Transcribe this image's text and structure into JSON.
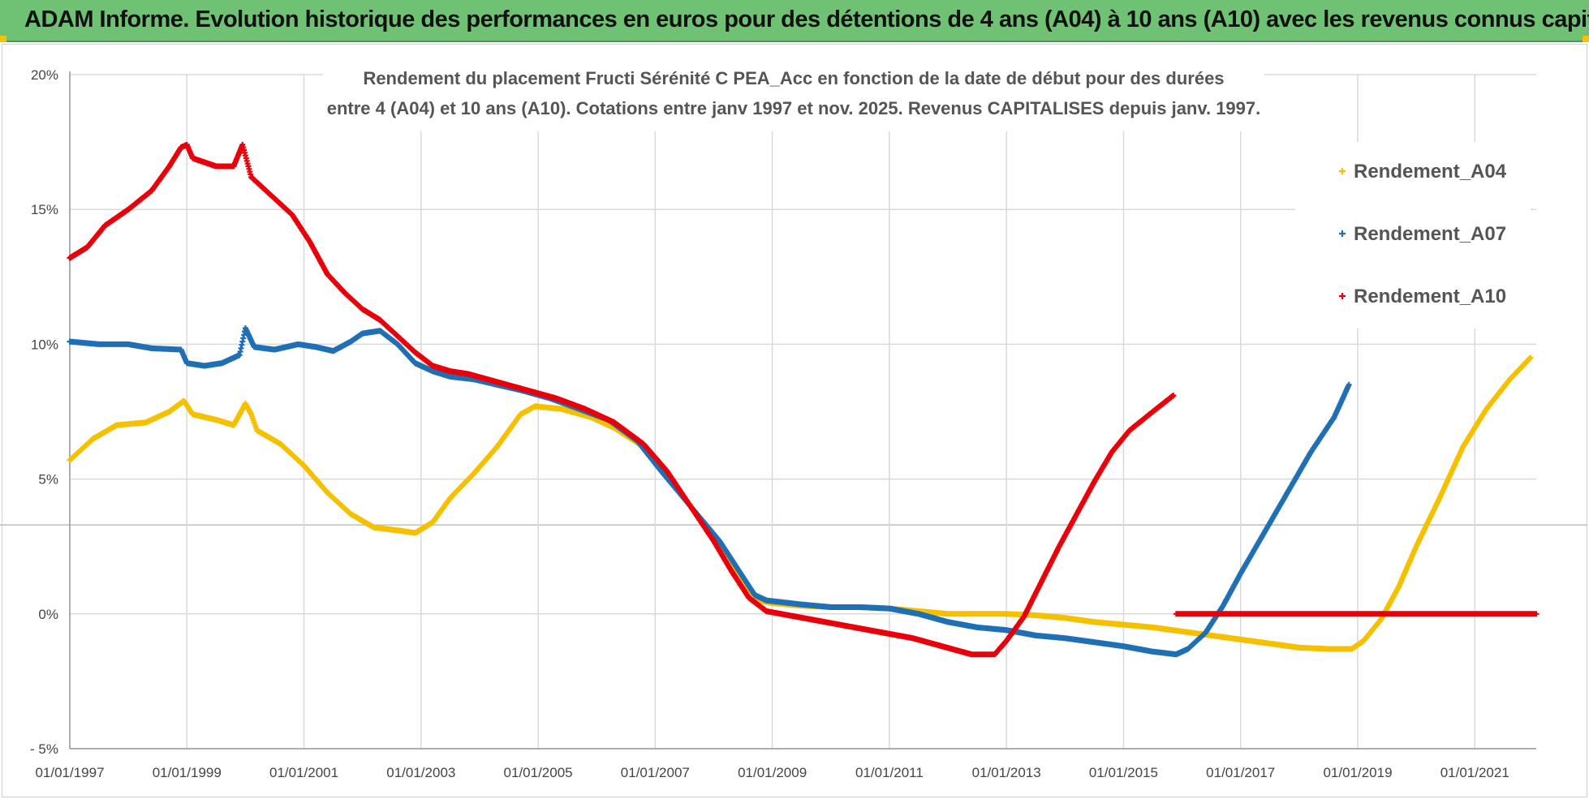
{
  "banner": {
    "text": "ADAM Informe. Evolution historique des performances en euros pour des détentions de 4 ans (A04) à 10 ans (A10) avec les revenus connus capitalisés"
  },
  "colors": {
    "banner_bg": "#6fc273",
    "A04": "#f5c000",
    "A07": "#1f6fb5",
    "A10": "#e8000b"
  },
  "chart_data": {
    "type": "scatter",
    "title_line1": "Rendement du placement Fructi Sérénité C PEA_Acc en fonction de la date de début pour des durées",
    "title_line2": "entre 4 (A04) et 10 ans (A10). Cotations entre janv 1997 et nov. 2025. Revenus CAPITALISES depuis janv. 1997.",
    "xlabel": "",
    "ylabel": "",
    "x_ticks": [
      "01/01/1997",
      "01/01/1999",
      "01/01/2001",
      "01/01/2003",
      "01/01/2005",
      "01/01/2007",
      "01/01/2009",
      "01/01/2011",
      "01/01/2013",
      "01/01/2015",
      "01/01/2017",
      "01/01/2019",
      "01/01/2021"
    ],
    "xlim": [
      1997.0,
      2022.05
    ],
    "y_ticks": [
      "20%",
      "15%",
      "10%",
      "5%",
      "0%",
      "- 5%"
    ],
    "ylim": [
      -5,
      20
    ],
    "grid": true,
    "legend_position": "top-right",
    "series": [
      {
        "name": "Rendement_A04",
        "color_key": "A04",
        "points": [
          [
            1997.0,
            5.7
          ],
          [
            1997.4,
            6.5
          ],
          [
            1997.8,
            7.0
          ],
          [
            1998.3,
            7.1
          ],
          [
            1998.7,
            7.5
          ],
          [
            1998.95,
            7.9
          ],
          [
            1999.1,
            7.4
          ],
          [
            1999.5,
            7.2
          ],
          [
            1999.8,
            7.0
          ],
          [
            2000.0,
            7.8
          ],
          [
            2000.1,
            7.4
          ],
          [
            2000.2,
            6.8
          ],
          [
            2000.6,
            6.3
          ],
          [
            2001.0,
            5.5
          ],
          [
            2001.4,
            4.5
          ],
          [
            2001.8,
            3.7
          ],
          [
            2002.2,
            3.2
          ],
          [
            2002.6,
            3.1
          ],
          [
            2002.9,
            3.0
          ],
          [
            2003.2,
            3.4
          ],
          [
            2003.5,
            4.3
          ],
          [
            2003.9,
            5.2
          ],
          [
            2004.3,
            6.2
          ],
          [
            2004.7,
            7.4
          ],
          [
            2004.95,
            7.7
          ],
          [
            2005.4,
            7.6
          ],
          [
            2005.9,
            7.3
          ],
          [
            2006.3,
            6.9
          ],
          [
            2006.8,
            6.2
          ],
          [
            2007.2,
            5.2
          ],
          [
            2007.6,
            4.0
          ],
          [
            2008.0,
            2.8
          ],
          [
            2008.4,
            1.5
          ],
          [
            2008.75,
            0.5
          ],
          [
            2009.0,
            0.4
          ],
          [
            2009.5,
            0.3
          ],
          [
            2010.0,
            0.25
          ],
          [
            2010.5,
            0.25
          ],
          [
            2011.0,
            0.2
          ],
          [
            2011.5,
            0.1
          ],
          [
            2012.0,
            0.0
          ],
          [
            2012.5,
            0.0
          ],
          [
            2013.0,
            0.0
          ],
          [
            2013.5,
            -0.05
          ],
          [
            2014.0,
            -0.15
          ],
          [
            2014.5,
            -0.3
          ],
          [
            2015.0,
            -0.4
          ],
          [
            2015.5,
            -0.5
          ],
          [
            2016.0,
            -0.65
          ],
          [
            2016.5,
            -0.8
          ],
          [
            2017.0,
            -0.95
          ],
          [
            2017.5,
            -1.1
          ],
          [
            2018.0,
            -1.25
          ],
          [
            2018.5,
            -1.3
          ],
          [
            2018.9,
            -1.3
          ],
          [
            2019.1,
            -1.0
          ],
          [
            2019.4,
            -0.2
          ],
          [
            2019.7,
            1.0
          ],
          [
            2020.0,
            2.5
          ],
          [
            2020.4,
            4.3
          ],
          [
            2020.8,
            6.2
          ],
          [
            2021.2,
            7.6
          ],
          [
            2021.6,
            8.7
          ],
          [
            2021.95,
            9.5
          ]
        ]
      },
      {
        "name": "Rendement_A07",
        "color_key": "A07",
        "points": [
          [
            1997.0,
            10.1
          ],
          [
            1997.5,
            10.0
          ],
          [
            1998.0,
            10.0
          ],
          [
            1998.4,
            9.85
          ],
          [
            1998.9,
            9.8
          ],
          [
            1999.0,
            9.3
          ],
          [
            1999.3,
            9.2
          ],
          [
            1999.6,
            9.3
          ],
          [
            1999.9,
            9.6
          ],
          [
            2000.0,
            10.6
          ],
          [
            2000.15,
            9.9
          ],
          [
            2000.5,
            9.8
          ],
          [
            2000.9,
            10.0
          ],
          [
            2001.2,
            9.9
          ],
          [
            2001.5,
            9.75
          ],
          [
            2001.8,
            10.1
          ],
          [
            2002.0,
            10.4
          ],
          [
            2002.3,
            10.5
          ],
          [
            2002.6,
            10.0
          ],
          [
            2002.9,
            9.3
          ],
          [
            2003.2,
            9.0
          ],
          [
            2003.5,
            8.8
          ],
          [
            2003.9,
            8.7
          ],
          [
            2004.3,
            8.5
          ],
          [
            2004.7,
            8.3
          ],
          [
            2005.2,
            8.0
          ],
          [
            2005.7,
            7.6
          ],
          [
            2006.2,
            7.2
          ],
          [
            2006.7,
            6.4
          ],
          [
            2007.1,
            5.3
          ],
          [
            2007.6,
            4.0
          ],
          [
            2008.1,
            2.7
          ],
          [
            2008.4,
            1.7
          ],
          [
            2008.7,
            0.7
          ],
          [
            2008.9,
            0.5
          ],
          [
            2009.5,
            0.35
          ],
          [
            2010.0,
            0.25
          ],
          [
            2010.5,
            0.25
          ],
          [
            2011.0,
            0.2
          ],
          [
            2011.5,
            0.0
          ],
          [
            2012.0,
            -0.3
          ],
          [
            2012.5,
            -0.5
          ],
          [
            2013.0,
            -0.6
          ],
          [
            2013.5,
            -0.8
          ],
          [
            2014.0,
            -0.9
          ],
          [
            2014.5,
            -1.05
          ],
          [
            2015.0,
            -1.2
          ],
          [
            2015.5,
            -1.4
          ],
          [
            2015.9,
            -1.5
          ],
          [
            2016.1,
            -1.3
          ],
          [
            2016.4,
            -0.7
          ],
          [
            2016.7,
            0.3
          ],
          [
            2017.0,
            1.5
          ],
          [
            2017.4,
            3.0
          ],
          [
            2017.8,
            4.5
          ],
          [
            2018.2,
            6.0
          ],
          [
            2018.6,
            7.3
          ],
          [
            2018.85,
            8.5
          ]
        ]
      },
      {
        "name": "Rendement_A10",
        "color_key": "A10",
        "points": [
          [
            1997.0,
            13.2
          ],
          [
            1997.3,
            13.6
          ],
          [
            1997.6,
            14.4
          ],
          [
            1998.0,
            15.0
          ],
          [
            1998.4,
            15.7
          ],
          [
            1998.7,
            16.6
          ],
          [
            1998.9,
            17.3
          ],
          [
            1999.0,
            17.4
          ],
          [
            1999.1,
            16.9
          ],
          [
            1999.5,
            16.6
          ],
          [
            1999.8,
            16.6
          ],
          [
            1999.95,
            17.4
          ],
          [
            2000.1,
            16.2
          ],
          [
            2000.4,
            15.6
          ],
          [
            2000.8,
            14.8
          ],
          [
            2001.1,
            13.8
          ],
          [
            2001.4,
            12.6
          ],
          [
            2001.7,
            11.9
          ],
          [
            2002.0,
            11.3
          ],
          [
            2002.3,
            10.9
          ],
          [
            2002.6,
            10.3
          ],
          [
            2002.9,
            9.7
          ],
          [
            2003.2,
            9.2
          ],
          [
            2003.5,
            9.0
          ],
          [
            2003.8,
            8.9
          ],
          [
            2004.3,
            8.6
          ],
          [
            2004.8,
            8.3
          ],
          [
            2005.3,
            8.0
          ],
          [
            2005.8,
            7.6
          ],
          [
            2006.3,
            7.1
          ],
          [
            2006.8,
            6.3
          ],
          [
            2007.2,
            5.3
          ],
          [
            2007.6,
            4.0
          ],
          [
            2008.0,
            2.7
          ],
          [
            2008.3,
            1.6
          ],
          [
            2008.6,
            0.6
          ],
          [
            2008.9,
            0.1
          ],
          [
            2009.4,
            -0.1
          ],
          [
            2009.9,
            -0.3
          ],
          [
            2010.4,
            -0.5
          ],
          [
            2010.9,
            -0.7
          ],
          [
            2011.4,
            -0.9
          ],
          [
            2011.9,
            -1.2
          ],
          [
            2012.4,
            -1.5
          ],
          [
            2012.8,
            -1.5
          ],
          [
            2013.0,
            -1.0
          ],
          [
            2013.3,
            -0.1
          ],
          [
            2013.6,
            1.2
          ],
          [
            2013.9,
            2.5
          ],
          [
            2014.2,
            3.7
          ],
          [
            2014.5,
            4.9
          ],
          [
            2014.8,
            6.0
          ],
          [
            2015.1,
            6.8
          ],
          [
            2015.5,
            7.5
          ],
          [
            2015.85,
            8.1
          ]
        ]
      },
      {
        "name": "Rendement_A10",
        "color_key": "A10",
        "points": [
          [
            2015.9,
            0.0
          ],
          [
            2022.05,
            0.0
          ]
        ]
      }
    ]
  }
}
